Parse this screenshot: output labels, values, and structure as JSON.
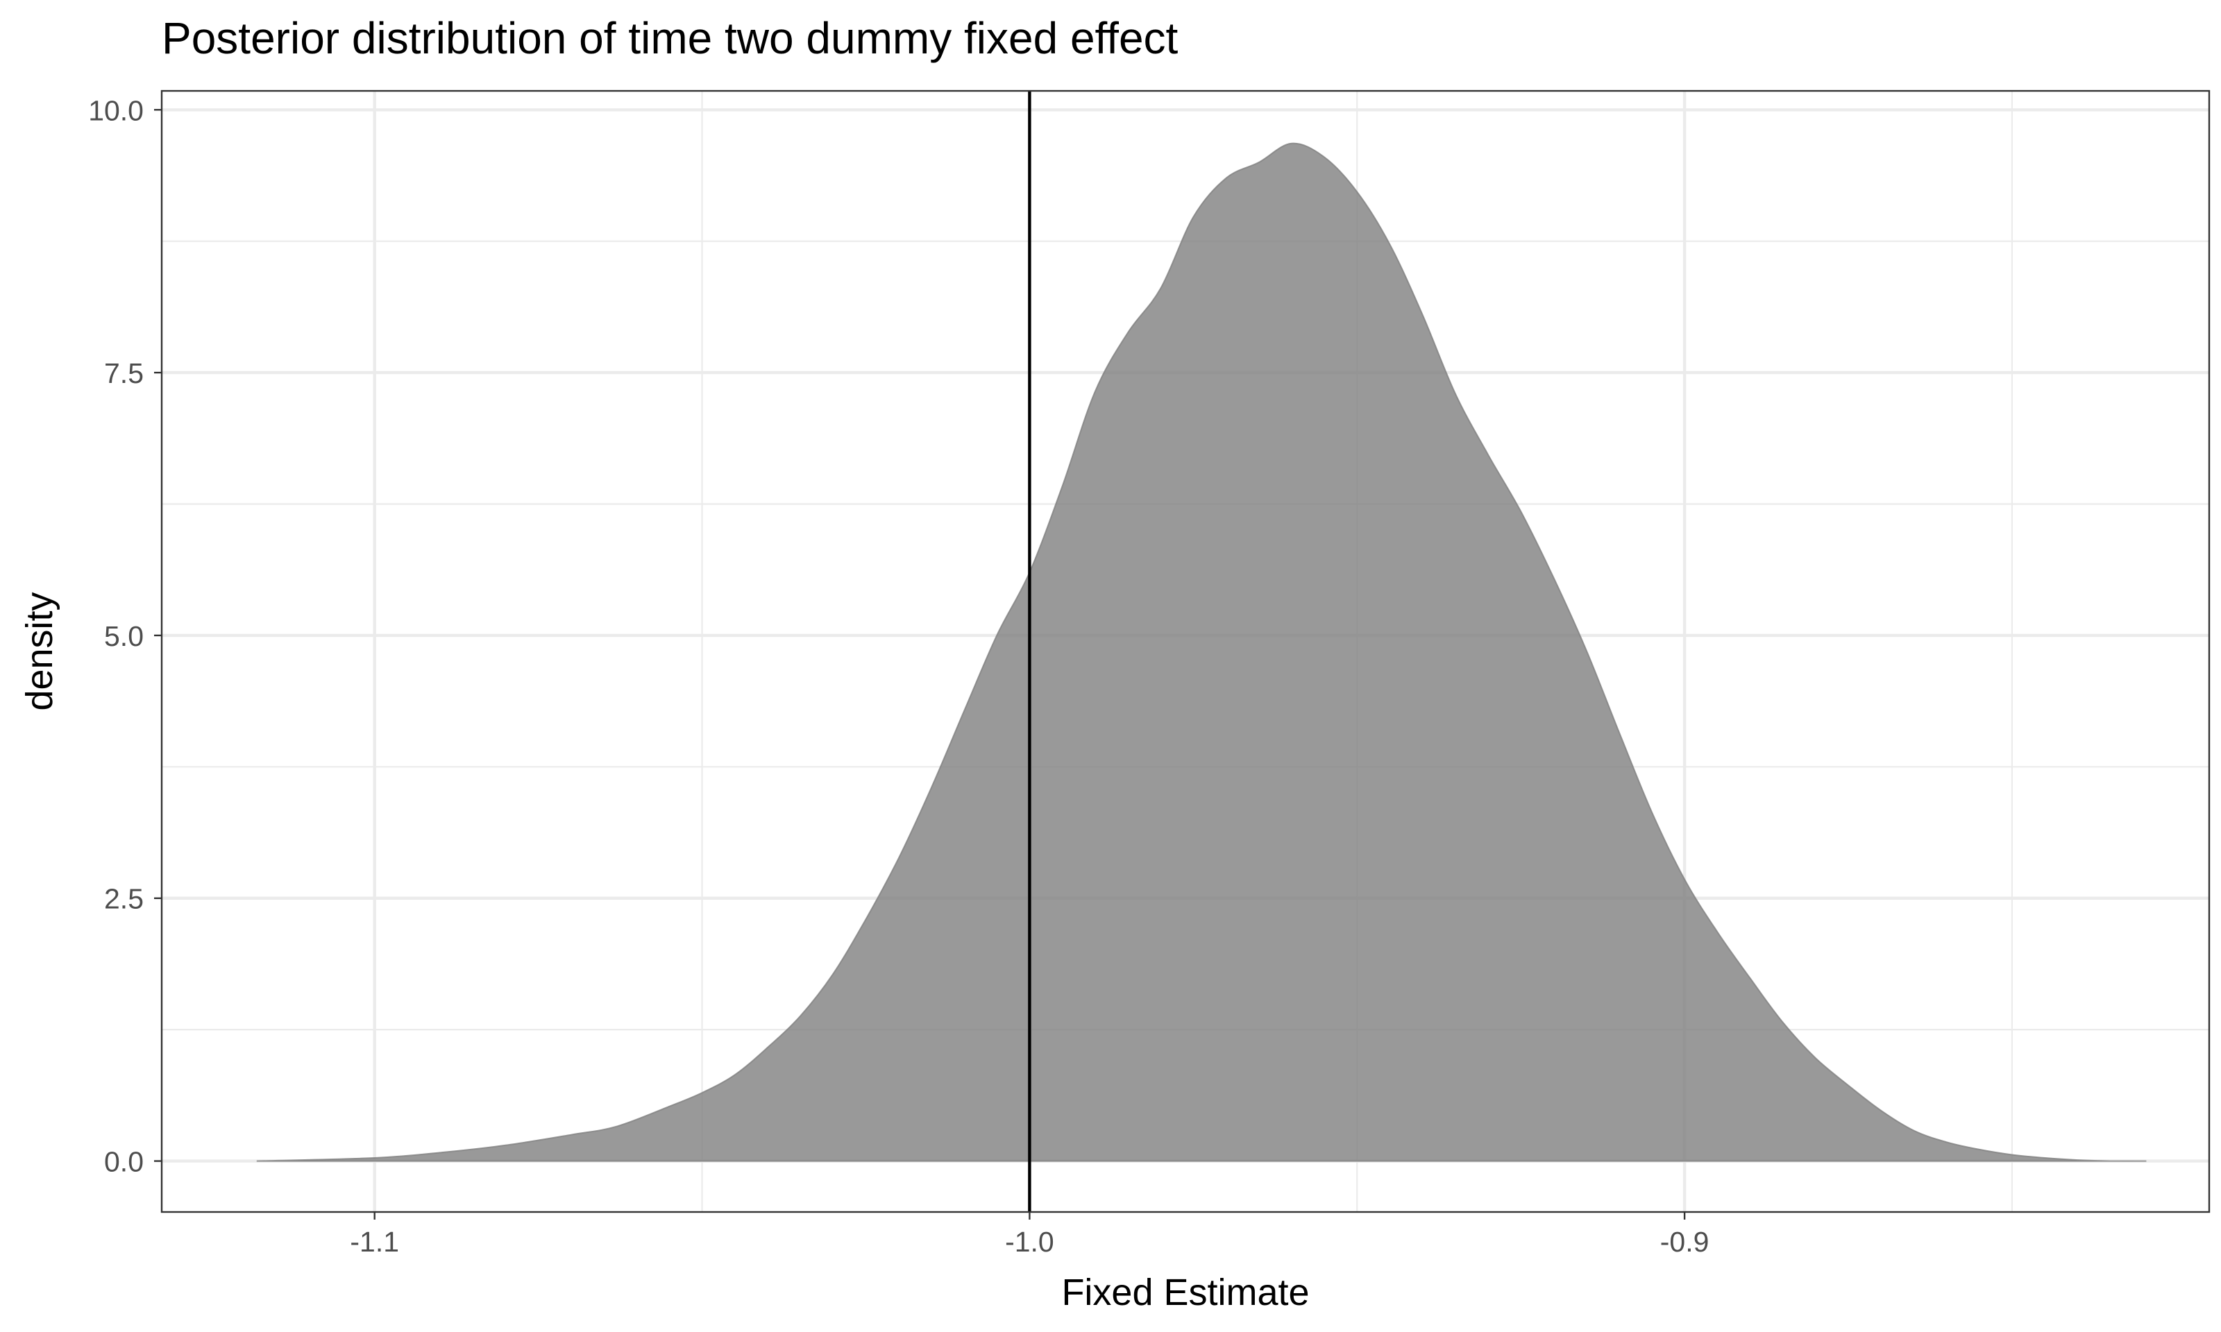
{
  "chart_data": {
    "type": "area",
    "title": "Posterior distribution of time two dummy fixed effect",
    "xlabel": "Fixed Estimate",
    "ylabel": "density",
    "xlim": [
      -1.1325,
      -0.8199
    ],
    "ylim": [
      -0.4846,
      10.18
    ],
    "x_ticks": [
      -1.1,
      -1.0,
      -0.9
    ],
    "x_tick_labels": [
      "-1.1",
      "-1.0",
      "-0.9"
    ],
    "y_ticks": [
      0,
      2.5,
      5,
      7.5,
      10
    ],
    "y_tick_labels": [
      "0.0",
      "2.5",
      "5.0",
      "7.5",
      "10.0"
    ],
    "grid": true,
    "legend": "none",
    "vline": -1.0,
    "series": [
      {
        "x": [
          -1.118,
          -1.1,
          -1.09,
          -1.08,
          -1.07,
          -1.063,
          -1.055,
          -1.05,
          -1.045,
          -1.04,
          -1.035,
          -1.03,
          -1.025,
          -1.02,
          -1.015,
          -1.01,
          -1.005,
          -1.0,
          -0.995,
          -0.99,
          -0.985,
          -0.98,
          -0.975,
          -0.97,
          -0.965,
          -0.96,
          -0.955,
          -0.95,
          -0.945,
          -0.94,
          -0.935,
          -0.93,
          -0.925,
          -0.92,
          -0.915,
          -0.91,
          -0.905,
          -0.9,
          -0.895,
          -0.89,
          -0.885,
          -0.88,
          -0.875,
          -0.87,
          -0.865,
          -0.86,
          -0.855,
          -0.85,
          -0.845,
          -0.84,
          -0.835,
          -0.8295
        ],
        "y": [
          0.0,
          0.03,
          0.08,
          0.15,
          0.25,
          0.33,
          0.52,
          0.65,
          0.82,
          1.08,
          1.38,
          1.78,
          2.3,
          2.88,
          3.55,
          4.28,
          5.0,
          5.6,
          6.42,
          7.32,
          7.88,
          8.3,
          8.98,
          9.35,
          9.5,
          9.68,
          9.55,
          9.22,
          8.72,
          8.05,
          7.3,
          6.72,
          6.18,
          5.55,
          4.86,
          4.08,
          3.32,
          2.68,
          2.18,
          1.74,
          1.32,
          0.98,
          0.72,
          0.48,
          0.29,
          0.18,
          0.11,
          0.06,
          0.03,
          0.01,
          0.0,
          0.0
        ]
      }
    ]
  }
}
